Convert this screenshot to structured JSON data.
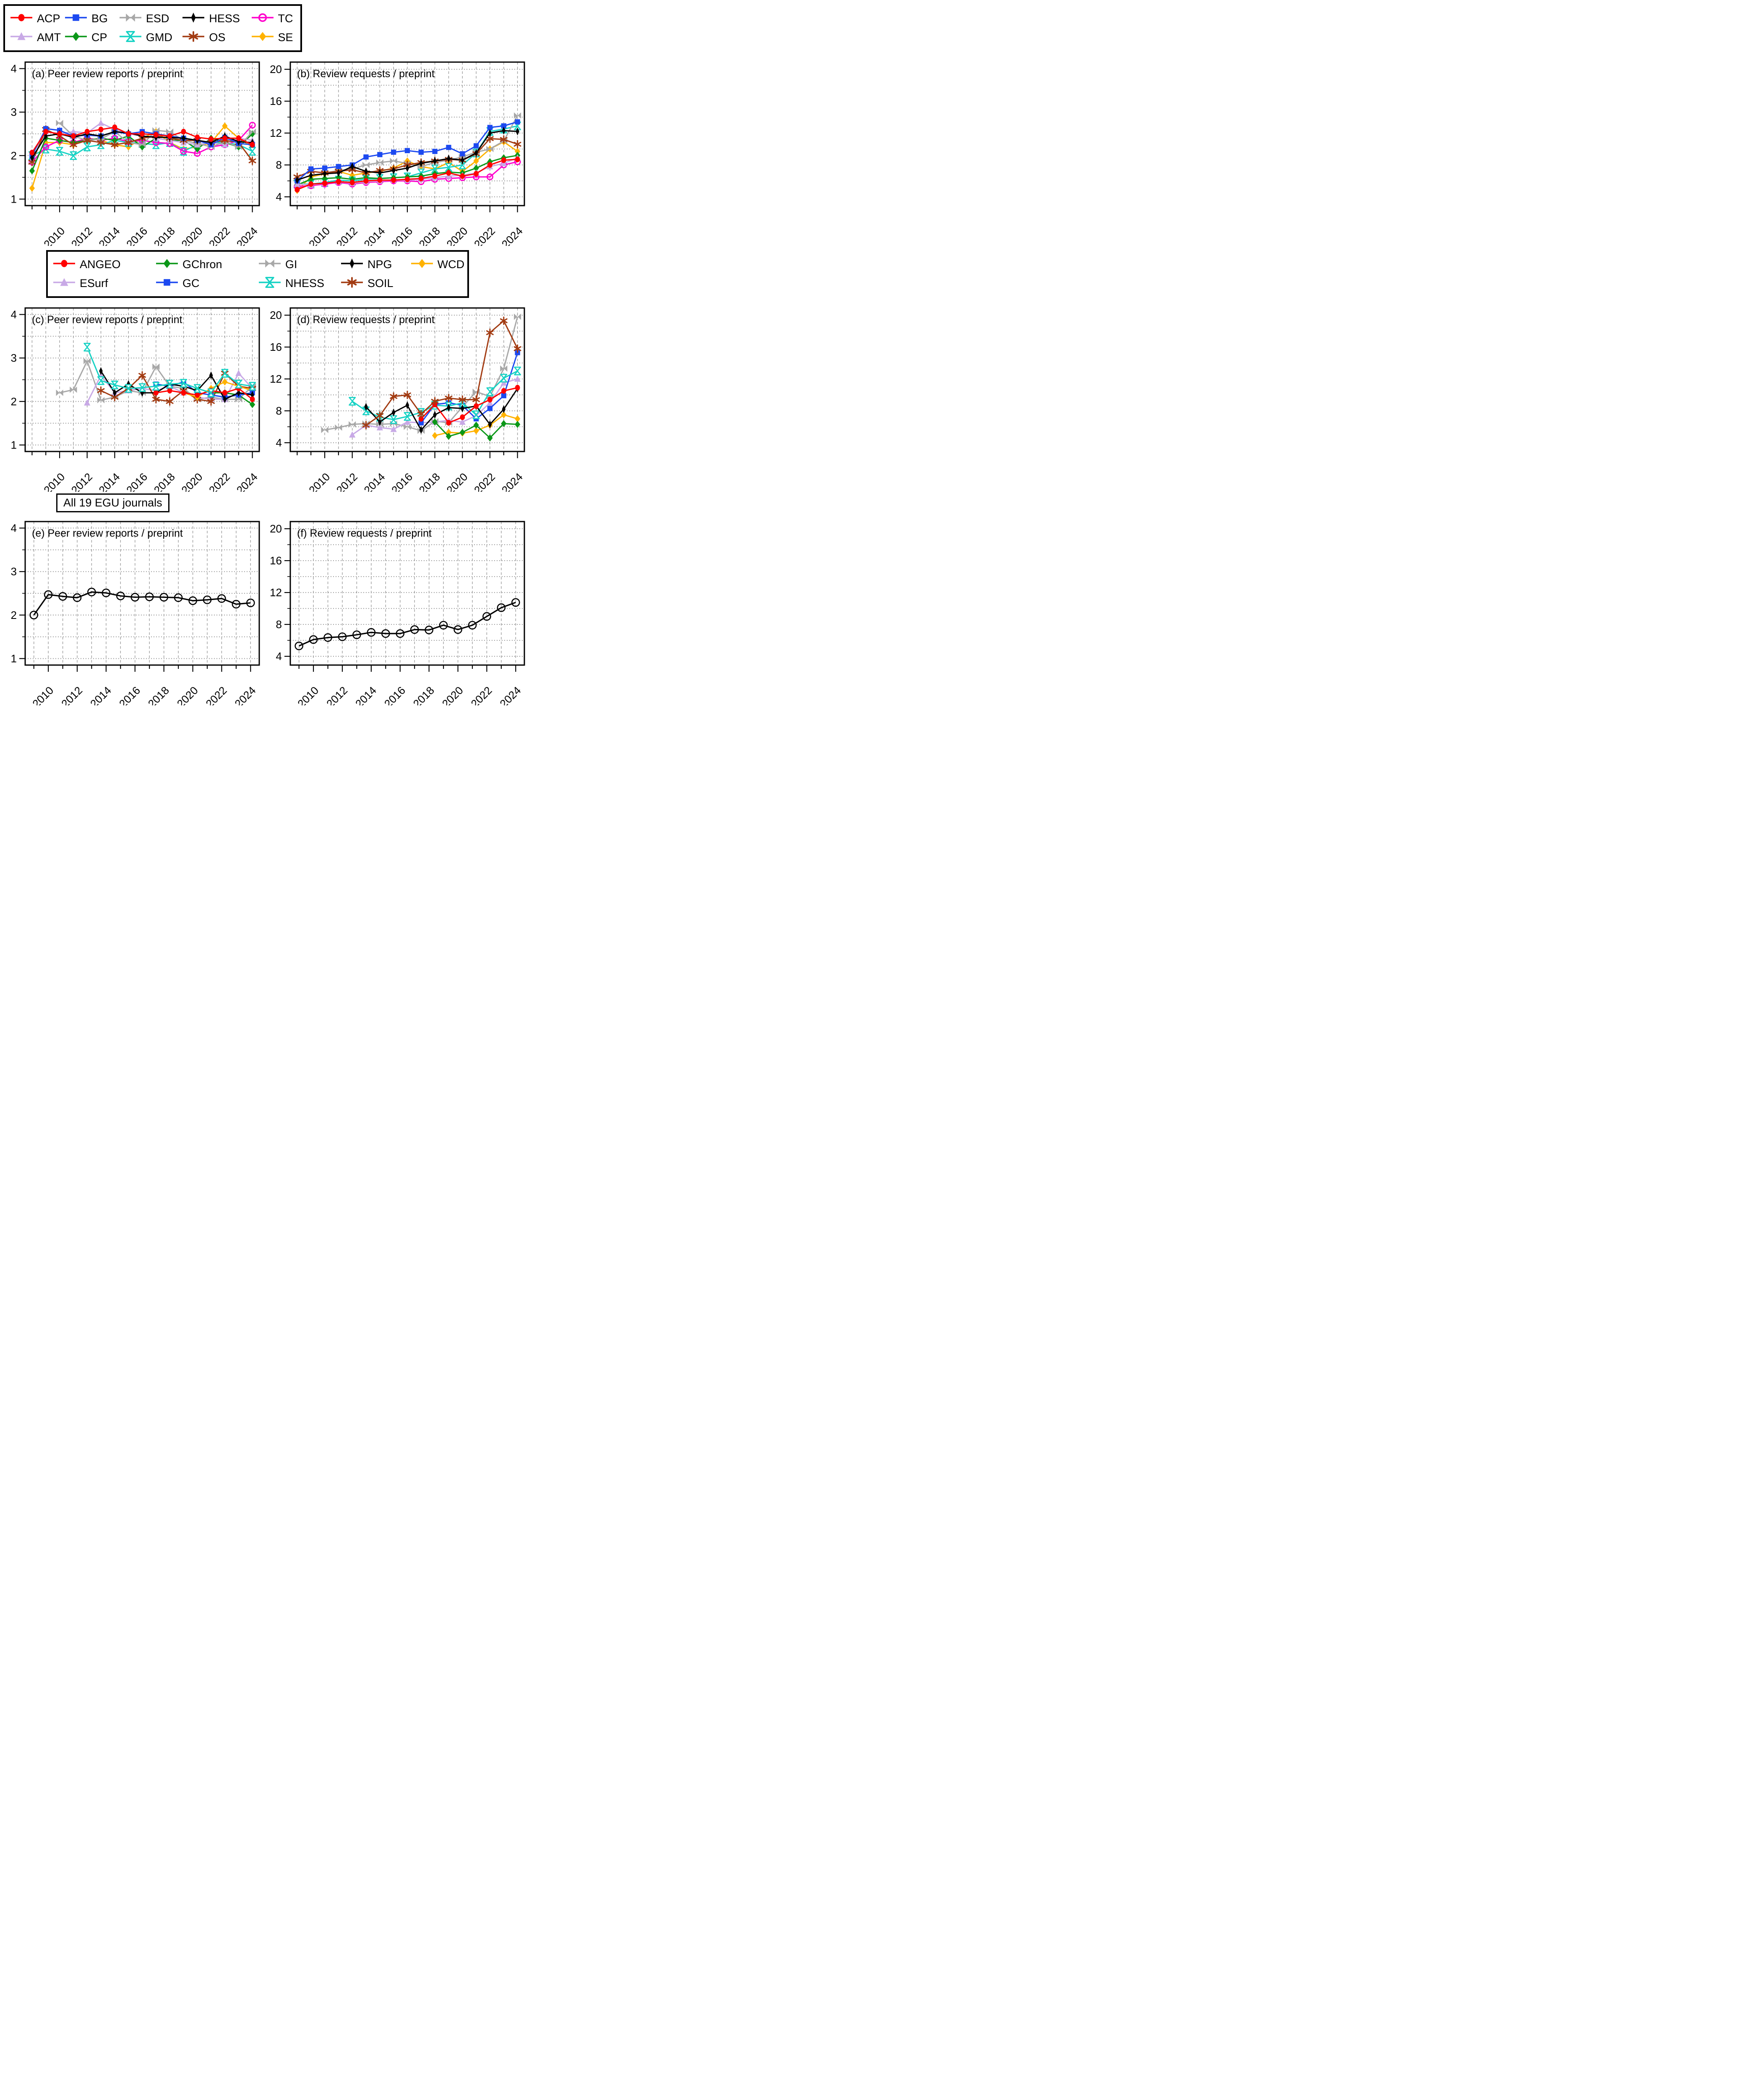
{
  "labels": {
    "all_journals": "All 19 EGU journals"
  },
  "journals": {
    "ACP": {
      "color": "#FF0000",
      "marker": "circle"
    },
    "BG": {
      "color": "#1C49F0",
      "marker": "square"
    },
    "ESD": {
      "color": "#A8A8A8",
      "marker": "bowtie"
    },
    "HESS": {
      "color": "#000000",
      "marker": "thin-diamond"
    },
    "TC": {
      "color": "#FF00CC",
      "marker": "circle-open"
    },
    "AMT": {
      "color": "#C8A9E6",
      "marker": "triangle"
    },
    "CP": {
      "color": "#0B9718",
      "marker": "diamond"
    },
    "GMD": {
      "color": "#16D2C4",
      "marker": "hourglass"
    },
    "OS": {
      "color": "#A23B12",
      "marker": "asterisk"
    },
    "SE": {
      "color": "#FFB200",
      "marker": "diamond"
    },
    "ANGEO": {
      "color": "#FF0000",
      "marker": "circle"
    },
    "GChron": {
      "color": "#0B9718",
      "marker": "diamond"
    },
    "GI": {
      "color": "#A8A8A8",
      "marker": "bowtie"
    },
    "NPG": {
      "color": "#000000",
      "marker": "thin-diamond"
    },
    "WCD": {
      "color": "#FFB200",
      "marker": "diamond"
    },
    "ESurf": {
      "color": "#C8A9E6",
      "marker": "triangle"
    },
    "GC": {
      "color": "#1C49F0",
      "marker": "square"
    },
    "NHESS": {
      "color": "#16D2C4",
      "marker": "hourglass"
    },
    "SOIL": {
      "color": "#A23B12",
      "marker": "asterisk"
    },
    "ALL19": {
      "color": "#000000",
      "marker": "circle-open-lg"
    }
  },
  "legend_top": {
    "rows": [
      [
        "ACP",
        "BG",
        "ESD",
        "HESS",
        "TC"
      ],
      [
        "AMT",
        "CP",
        "GMD",
        "OS",
        "SE"
      ]
    ]
  },
  "legend_mid": {
    "rows": [
      [
        "ANGEO",
        "GChron",
        "GI",
        "NPG",
        "WCD"
      ],
      [
        "ESurf",
        "GC",
        "NHESS",
        "SOIL"
      ]
    ]
  },
  "chart_data": [
    {
      "type": "line",
      "title": "(a) Peer review reports / preprint",
      "xlim": [
        2007.5,
        2024.5
      ],
      "ylim": [
        0.85,
        4.15
      ],
      "yticks": [
        1,
        2,
        3,
        4
      ],
      "yminor": 0.5,
      "xticks": [
        2010,
        2012,
        2014,
        2016,
        2018,
        2020,
        2022,
        2024
      ],
      "lw": 3,
      "ms": 0.95,
      "series": [
        {
          "journal": "SE",
          "start": 2008,
          "values": [
            1.25,
            2.3,
            2.3,
            2.25,
            2.4,
            2.35,
            2.25,
            2.2,
            2.4,
            2.55,
            2.3,
            2.15,
            2.2,
            2.3,
            2.68,
            2.4,
            2.2
          ]
        },
        {
          "journal": "GMD",
          "start": 2008,
          "values": [
            2.0,
            2.15,
            2.1,
            2.0,
            2.2,
            2.25,
            2.35,
            2.3,
            2.28,
            2.25,
            2.3,
            2.1,
            2.25,
            2.3,
            2.3,
            2.25,
            2.1
          ]
        },
        {
          "journal": "TC",
          "start": 2008,
          "values": [
            1.85,
            2.2,
            2.35,
            2.3,
            2.4,
            2.35,
            2.4,
            2.32,
            2.35,
            2.3,
            2.28,
            2.1,
            2.05,
            2.2,
            2.25,
            2.35,
            2.7
          ]
        },
        {
          "journal": "CP",
          "start": 2008,
          "values": [
            1.65,
            2.4,
            2.35,
            2.3,
            2.35,
            2.4,
            2.35,
            2.45,
            2.2,
            2.4,
            2.35,
            2.35,
            2.15,
            2.4,
            2.3,
            2.2,
            2.5
          ]
        },
        {
          "journal": "AMT",
          "start": 2008,
          "values": [
            1.9,
            2.55,
            2.5,
            2.55,
            2.52,
            2.75,
            2.6,
            2.5,
            2.45,
            2.4,
            2.35,
            2.3,
            2.25,
            2.3,
            2.25,
            2.4,
            2.35
          ]
        },
        {
          "journal": "ESD",
          "start": 2010,
          "values": [
            2.75,
            2.45,
            2.35,
            2.38,
            2.55,
            2.3,
            2.25,
            2.58,
            2.55,
            2.35,
            2.28,
            2.2,
            2.32,
            2.2,
            2.55
          ]
        },
        {
          "journal": "OS",
          "start": 2008,
          "values": [
            1.85,
            2.6,
            2.45,
            2.25,
            2.35,
            2.3,
            2.25,
            2.3,
            2.4,
            2.45,
            2.4,
            2.35,
            2.35,
            2.3,
            2.35,
            2.3,
            1.88
          ]
        },
        {
          "journal": "BG",
          "start": 2008,
          "values": [
            2.0,
            2.62,
            2.58,
            2.45,
            2.47,
            2.45,
            2.55,
            2.5,
            2.55,
            2.5,
            2.45,
            2.4,
            2.35,
            2.25,
            2.42,
            2.28,
            2.25
          ]
        },
        {
          "journal": "HESS",
          "start": 2008,
          "values": [
            1.95,
            2.45,
            2.5,
            2.42,
            2.5,
            2.45,
            2.55,
            2.52,
            2.45,
            2.42,
            2.42,
            2.4,
            2.35,
            2.3,
            2.45,
            2.32,
            2.3
          ]
        },
        {
          "journal": "ACP",
          "start": 2008,
          "values": [
            2.07,
            2.55,
            2.5,
            2.45,
            2.55,
            2.6,
            2.65,
            2.5,
            2.5,
            2.48,
            2.45,
            2.55,
            2.42,
            2.38,
            2.4,
            2.4,
            2.25
          ]
        }
      ]
    },
    {
      "type": "line",
      "title": "(b) Review requests / preprint",
      "xlim": [
        2007.5,
        2024.5
      ],
      "ylim": [
        2.9,
        20.9
      ],
      "yticks": [
        4,
        8,
        12,
        16,
        20
      ],
      "yminor": 2,
      "xticks": [
        2010,
        2012,
        2014,
        2016,
        2018,
        2020,
        2022,
        2024
      ],
      "lw": 3,
      "ms": 0.95,
      "series": [
        {
          "journal": "SE",
          "start": 2008,
          "values": [
            4.8,
            6.5,
            6.9,
            7.2,
            6.7,
            7.0,
            7.2,
            7.6,
            8.5,
            7.8,
            7.5,
            8.3,
            7.2,
            8.5,
            10.0,
            10.9,
            9.7
          ]
        },
        {
          "journal": "GMD",
          "start": 2008,
          "values": [
            5.6,
            5.6,
            5.8,
            6.1,
            6.0,
            6.2,
            6.3,
            6.4,
            6.5,
            7.0,
            7.5,
            7.7,
            8.0,
            9.5,
            12.2,
            12.5,
            12.9
          ]
        },
        {
          "journal": "TC",
          "start": 2008,
          "values": [
            5.3,
            5.4,
            5.6,
            5.8,
            5.6,
            5.8,
            5.9,
            6.0,
            6.0,
            5.9,
            6.2,
            6.3,
            6.4,
            6.5,
            6.5,
            8.0,
            8.4
          ]
        },
        {
          "journal": "CP",
          "start": 2008,
          "values": [
            5.5,
            6.2,
            6.3,
            6.4,
            6.2,
            6.4,
            6.3,
            6.4,
            6.5,
            6.6,
            6.9,
            7.1,
            7.0,
            7.6,
            8.4,
            8.9,
            9.2
          ]
        },
        {
          "journal": "AMT",
          "start": 2008,
          "values": [
            5.6,
            5.5,
            5.7,
            5.9,
            5.7,
            5.9,
            6.0,
            6.1,
            6.1,
            6.2,
            6.4,
            6.6,
            6.7,
            7.0,
            7.8,
            8.2,
            8.9
          ]
        },
        {
          "journal": "ESD",
          "start": 2010,
          "values": [
            7.0,
            7.3,
            7.5,
            8.0,
            8.3,
            8.5,
            8.2,
            7.8,
            8.3,
            8.6,
            9.0,
            9.6,
            10.0,
            11.0,
            14.2
          ]
        },
        {
          "journal": "OS",
          "start": 2008,
          "values": [
            6.5,
            7.2,
            7.0,
            7.2,
            7.4,
            7.0,
            7.3,
            7.5,
            8.0,
            8.3,
            8.5,
            8.7,
            8.6,
            9.4,
            11.3,
            11.2,
            10.6
          ]
        },
        {
          "journal": "BG",
          "start": 2008,
          "values": [
            6.0,
            7.5,
            7.6,
            7.8,
            8.0,
            9.0,
            9.3,
            9.6,
            9.8,
            9.6,
            9.7,
            10.2,
            9.4,
            10.4,
            12.7,
            12.9,
            13.4
          ]
        },
        {
          "journal": "HESS",
          "start": 2008,
          "values": [
            6.1,
            6.7,
            6.9,
            7.0,
            7.8,
            7.2,
            7.0,
            7.3,
            7.6,
            8.2,
            8.5,
            8.8,
            8.6,
            9.5,
            12.0,
            12.3,
            12.2
          ]
        },
        {
          "journal": "ACP",
          "start": 2008,
          "values": [
            4.9,
            5.6,
            5.7,
            5.9,
            5.8,
            6.0,
            6.1,
            6.1,
            6.2,
            6.3,
            6.6,
            7.0,
            6.6,
            6.9,
            8.0,
            8.6,
            8.7
          ]
        }
      ]
    },
    {
      "type": "line",
      "title": "(c) Peer review reports / preprint",
      "xlim": [
        2007.5,
        2024.5
      ],
      "ylim": [
        0.85,
        4.15
      ],
      "yticks": [
        1,
        2,
        3,
        4
      ],
      "yminor": 0.5,
      "xticks": [
        2010,
        2012,
        2014,
        2016,
        2018,
        2020,
        2022,
        2024
      ],
      "lw": 3,
      "ms": 0.95,
      "series": [
        {
          "journal": "GI",
          "start": 2010,
          "values": [
            2.2,
            2.27,
            2.93,
            2.03,
            2.1,
            2.25,
            2.2,
            2.8,
            2.35,
            2.3,
            2.05,
            2.1,
            2.05,
            2.05,
            2.35
          ]
        },
        {
          "journal": "ESurf",
          "start": 2012,
          "values": [
            1.97,
            2.6,
            2.2,
            2.25,
            2.3,
            2.25,
            2.35,
            2.2,
            2.1,
            2.05,
            2.05,
            2.65,
            2.3
          ]
        },
        {
          "journal": "SOIL",
          "start": 2013,
          "values": [
            2.25,
            2.1,
            2.3,
            2.6,
            2.05,
            2.0,
            2.25,
            2.05,
            2.0,
            2.65,
            2.35,
            2.3
          ]
        },
        {
          "journal": "WCD",
          "start": 2019,
          "values": [
            2.2,
            2.1,
            2.3,
            2.45,
            2.35,
            2.25
          ]
        },
        {
          "journal": "GChron",
          "start": 2020,
          "values": [
            2.3,
            2.2,
            2.2,
            2.15,
            1.93
          ]
        },
        {
          "journal": "GC",
          "start": 2017,
          "values": [
            2.4,
            2.35,
            2.45,
            2.2,
            2.15,
            2.1,
            2.15,
            2.2
          ]
        },
        {
          "journal": "NPG",
          "start": 2013,
          "values": [
            2.7,
            2.2,
            2.4,
            2.2,
            2.2,
            2.4,
            2.35,
            2.25,
            2.6,
            2.05,
            2.2,
            2.15
          ]
        },
        {
          "journal": "ANGEO",
          "start": 2017,
          "values": [
            2.2,
            2.25,
            2.2,
            2.15,
            2.25,
            2.2,
            2.3,
            2.05
          ]
        },
        {
          "journal": "NHESS",
          "start": 2012,
          "values": [
            3.25,
            2.48,
            2.38,
            2.3,
            2.32,
            2.35,
            2.4,
            2.42,
            2.3,
            2.2,
            2.65,
            2.4,
            2.35
          ]
        }
      ]
    },
    {
      "type": "line",
      "title": "(d) Review requests / preprint",
      "xlim": [
        2007.5,
        2024.5
      ],
      "ylim": [
        2.9,
        20.9
      ],
      "yticks": [
        4,
        8,
        12,
        16,
        20
      ],
      "yminor": 2,
      "xticks": [
        2010,
        2012,
        2014,
        2016,
        2018,
        2020,
        2022,
        2024
      ],
      "lw": 3,
      "ms": 0.95,
      "series": [
        {
          "journal": "GI",
          "start": 2010,
          "values": [
            5.6,
            5.9,
            6.3,
            6.4,
            6.3,
            6.4,
            6.0,
            5.5,
            6.7,
            6.5,
            8.5,
            10.4,
            9.8,
            13.3,
            19.8
          ]
        },
        {
          "journal": "ESurf",
          "start": 2012,
          "values": [
            5.0,
            6.2,
            5.9,
            5.7,
            6.6,
            6.5,
            6.6,
            6.8,
            6.6,
            7.4,
            9.0,
            11.5,
            12.0
          ]
        },
        {
          "journal": "WCD",
          "start": 2018,
          "values": [
            4.9,
            5.3,
            5.2,
            5.5,
            6.2,
            7.5,
            7.0
          ]
        },
        {
          "journal": "GChron",
          "start": 2018,
          "values": [
            6.6,
            4.8,
            5.3,
            6.2,
            4.6,
            6.4,
            6.3
          ]
        },
        {
          "journal": "GC",
          "start": 2017,
          "values": [
            6.5,
            8.8,
            9.0,
            8.7,
            7.0,
            8.3,
            9.9,
            15.3
          ]
        },
        {
          "journal": "NHESS",
          "start": 2012,
          "values": [
            9.2,
            8.0,
            7.2,
            6.9,
            7.3,
            7.8,
            8.7,
            8.6,
            9.0,
            7.5,
            10.4,
            12.1,
            13.0
          ]
        },
        {
          "journal": "NPG",
          "start": 2013,
          "values": [
            8.5,
            6.6,
            7.8,
            8.7,
            5.6,
            7.5,
            8.4,
            8.3,
            8.6,
            6.3,
            8.2,
            10.8
          ]
        },
        {
          "journal": "ANGEO",
          "start": 2017,
          "values": [
            7.0,
            8.8,
            6.5,
            7.2,
            8.6,
            9.4,
            10.5,
            10.9
          ]
        },
        {
          "journal": "SOIL",
          "start": 2013,
          "values": [
            6.2,
            7.4,
            9.8,
            10.0,
            7.6,
            9.2,
            9.6,
            9.4,
            9.4,
            17.8,
            19.3,
            15.8
          ]
        }
      ]
    },
    {
      "type": "line",
      "title": "(e) Peer review reports / preprint",
      "xlim": [
        2008.4,
        2024.6
      ],
      "ylim": [
        0.85,
        4.15
      ],
      "yticks": [
        1,
        2,
        3,
        4
      ],
      "yminor": 0.5,
      "xticks": [
        2010,
        2012,
        2014,
        2016,
        2018,
        2020,
        2022,
        2024
      ],
      "lw": 3.2,
      "ms": 1,
      "series": [
        {
          "journal": "ALL19",
          "start": 2009,
          "values": [
            2.0,
            2.47,
            2.43,
            2.4,
            2.53,
            2.51,
            2.44,
            2.41,
            2.42,
            2.41,
            2.4,
            2.33,
            2.35,
            2.38,
            2.25,
            2.28
          ]
        }
      ]
    },
    {
      "type": "line",
      "title": "(f) Review requests / preprint",
      "xlim": [
        2008.4,
        2024.6
      ],
      "ylim": [
        2.9,
        20.9
      ],
      "yticks": [
        4,
        8,
        12,
        16,
        20
      ],
      "yminor": 2,
      "xticks": [
        2010,
        2012,
        2014,
        2016,
        2018,
        2020,
        2022,
        2024
      ],
      "lw": 3.2,
      "ms": 1,
      "series": [
        {
          "journal": "ALL19",
          "start": 2009,
          "values": [
            5.3,
            6.1,
            6.35,
            6.45,
            6.7,
            7.0,
            6.85,
            6.85,
            7.35,
            7.3,
            7.9,
            7.35,
            7.9,
            9.0,
            10.1,
            10.75
          ]
        }
      ]
    }
  ]
}
